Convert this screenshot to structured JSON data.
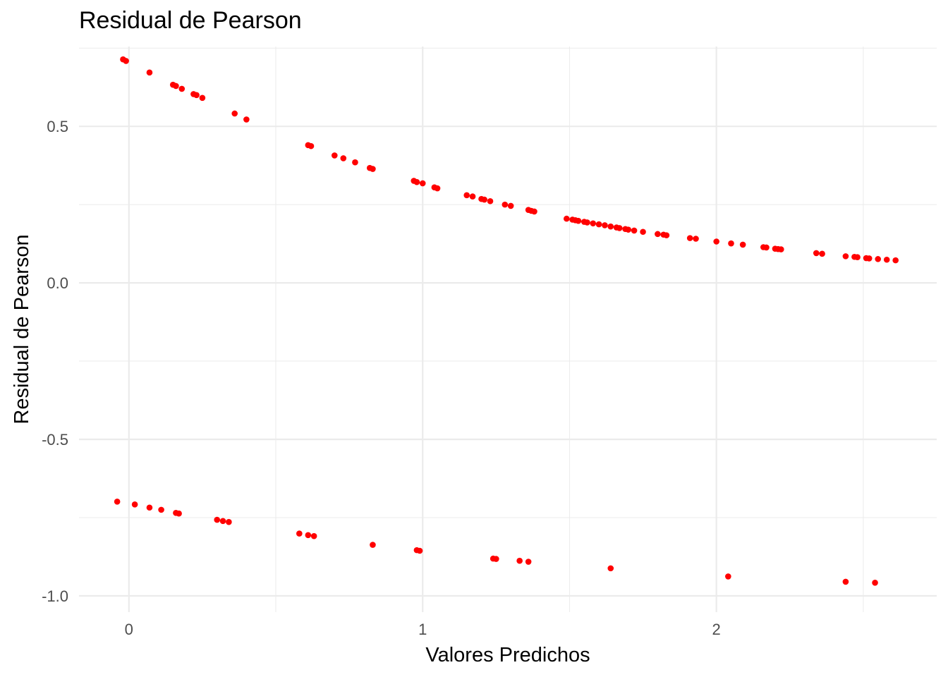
{
  "chart_data": {
    "type": "scatter",
    "title": "Residual de Pearson",
    "xlabel": "Valores Predichos",
    "ylabel": "Residual de Pearson",
    "xlim": [
      -0.17,
      2.75
    ],
    "ylim": [
      -1.052,
      0.755
    ],
    "x_ticks": [
      0,
      1,
      2
    ],
    "x_tick_labels": [
      "0",
      "1",
      "2"
    ],
    "y_ticks": [
      -1.0,
      -0.5,
      0.0,
      0.5
    ],
    "y_tick_labels": [
      "-1.0",
      "-0.5",
      "0.0",
      "0.5"
    ],
    "grid": true,
    "point_color": "#ff0000",
    "series": [
      {
        "x": [
          -0.02,
          -0.01,
          0.07,
          0.15,
          0.16,
          0.18,
          0.22,
          0.23,
          0.25,
          0.36,
          0.4,
          0.61,
          0.62,
          0.7,
          0.73,
          0.77,
          0.82,
          0.83,
          0.97,
          0.98,
          1.0,
          1.04,
          1.05,
          1.15,
          1.17,
          1.2,
          1.21,
          1.23,
          1.28,
          1.3,
          1.36,
          1.37,
          1.38,
          1.49,
          1.51,
          1.52,
          1.53,
          1.55,
          1.56,
          1.58,
          1.6,
          1.62,
          1.64,
          1.66,
          1.67,
          1.69,
          1.7,
          1.72,
          1.75,
          1.8,
          1.82,
          1.83,
          1.91,
          1.93,
          2.0,
          2.05,
          2.09,
          2.16,
          2.17,
          2.2,
          2.21,
          2.22,
          2.34,
          2.36,
          2.44,
          2.47,
          2.48,
          2.51,
          2.52,
          2.55,
          2.58,
          2.61
        ],
        "y": [
          0.714,
          0.709,
          0.672,
          0.633,
          0.629,
          0.62,
          0.603,
          0.6,
          0.591,
          0.541,
          0.522,
          0.44,
          0.437,
          0.407,
          0.398,
          0.385,
          0.367,
          0.364,
          0.326,
          0.322,
          0.318,
          0.305,
          0.302,
          0.28,
          0.276,
          0.268,
          0.266,
          0.261,
          0.25,
          0.246,
          0.233,
          0.23,
          0.228,
          0.205,
          0.202,
          0.2,
          0.198,
          0.195,
          0.193,
          0.19,
          0.187,
          0.184,
          0.18,
          0.177,
          0.175,
          0.172,
          0.17,
          0.167,
          0.163,
          0.156,
          0.154,
          0.152,
          0.143,
          0.141,
          0.132,
          0.126,
          0.122,
          0.114,
          0.113,
          0.109,
          0.108,
          0.107,
          0.095,
          0.093,
          0.085,
          0.083,
          0.082,
          0.079,
          0.078,
          0.076,
          0.074,
          0.072
        ]
      },
      {
        "x": [
          -0.04,
          0.02,
          0.07,
          0.11,
          0.16,
          0.17,
          0.3,
          0.32,
          0.34,
          0.58,
          0.61,
          0.63,
          0.83,
          0.98,
          0.99,
          1.24,
          1.25,
          1.33,
          1.36,
          1.64,
          2.04,
          2.44,
          2.54
        ],
        "y": [
          -0.699,
          -0.708,
          -0.718,
          -0.725,
          -0.735,
          -0.737,
          -0.757,
          -0.761,
          -0.764,
          -0.801,
          -0.806,
          -0.809,
          -0.837,
          -0.854,
          -0.856,
          -0.881,
          -0.882,
          -0.888,
          -0.891,
          -0.912,
          -0.938,
          -0.955,
          -0.958
        ]
      }
    ]
  }
}
